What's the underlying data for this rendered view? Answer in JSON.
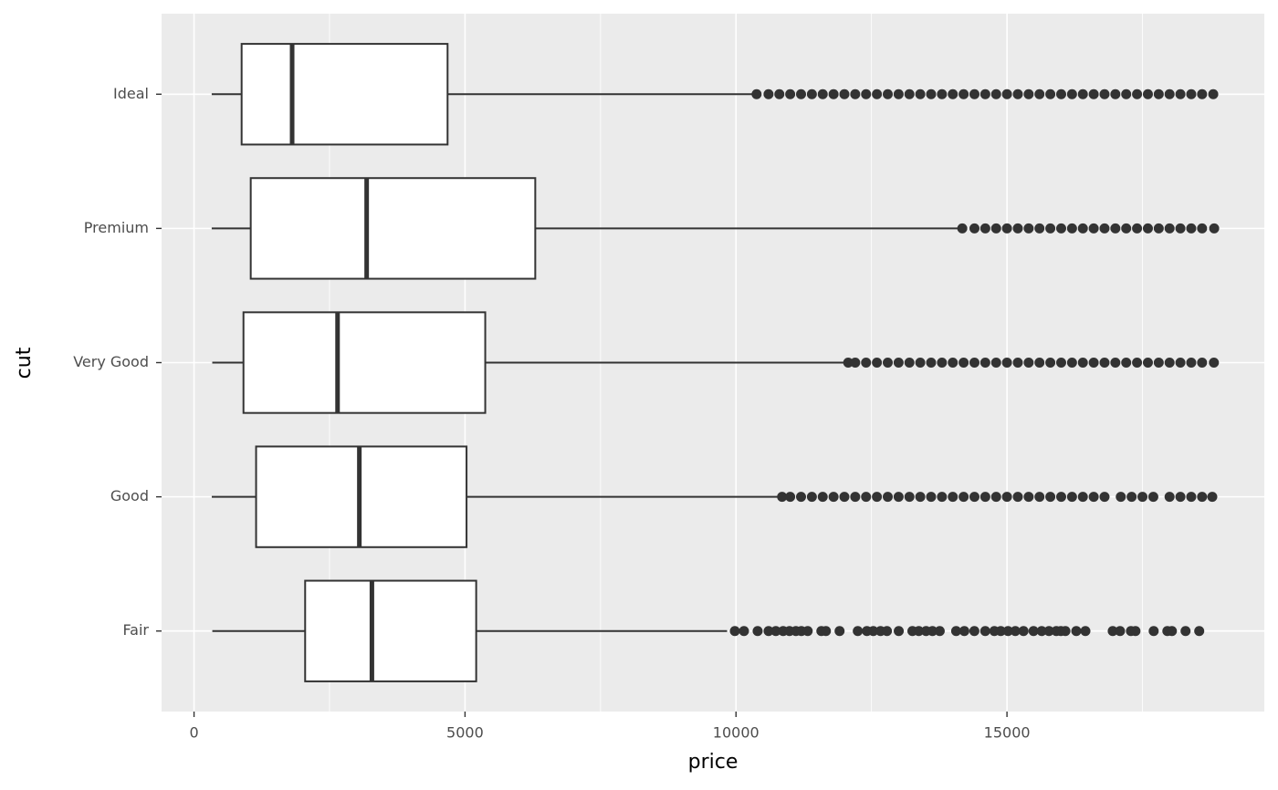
{
  "chart_data": {
    "type": "boxplot",
    "x_label": "price",
    "y_label": "cut",
    "categories": [
      "Ideal",
      "Premium",
      "Very Good",
      "Good",
      "Fair"
    ],
    "boxes": [
      {
        "min": 326,
        "q1": 878,
        "median": 1810,
        "q3": 4678,
        "max": 10380,
        "outliers": [
          10380,
          10600,
          10800,
          11000,
          11200,
          11400,
          11600,
          11800,
          12000,
          12200,
          12400,
          12600,
          12800,
          13000,
          13200,
          13400,
          13600,
          13800,
          14000,
          14200,
          14400,
          14600,
          14800,
          15000,
          15200,
          15400,
          15600,
          15800,
          16000,
          16200,
          16400,
          16600,
          16800,
          17000,
          17200,
          17400,
          17600,
          17800,
          18000,
          18200,
          18400,
          18600,
          18806
        ]
      },
      {
        "min": 326,
        "q1": 1046,
        "median": 3185,
        "q3": 6296,
        "max": 14175,
        "outliers": [
          14175,
          14400,
          14600,
          14800,
          15000,
          15200,
          15400,
          15600,
          15800,
          16000,
          16200,
          16400,
          16600,
          16800,
          17000,
          17200,
          17400,
          17600,
          17800,
          18000,
          18200,
          18400,
          18600,
          18823
        ]
      },
      {
        "min": 336,
        "q1": 912,
        "median": 2648,
        "q3": 5373,
        "max": 12070,
        "outliers": [
          12070,
          12200,
          12400,
          12600,
          12800,
          13000,
          13200,
          13400,
          13600,
          13800,
          14000,
          14200,
          14400,
          14600,
          14800,
          15000,
          15200,
          15400,
          15600,
          15800,
          16000,
          16200,
          16400,
          16600,
          16800,
          17000,
          17200,
          17400,
          17600,
          17800,
          18000,
          18200,
          18400,
          18600,
          18818
        ]
      },
      {
        "min": 327,
        "q1": 1145,
        "median": 3050,
        "q3": 5028,
        "max": 10850,
        "outliers": [
          10850,
          11000,
          11200,
          11400,
          11600,
          11800,
          12000,
          12200,
          12400,
          12600,
          12800,
          13000,
          13200,
          13400,
          13600,
          13800,
          14000,
          14200,
          14400,
          14600,
          14800,
          15000,
          15200,
          15400,
          15600,
          15800,
          16000,
          16200,
          16400,
          16600,
          16800,
          17100,
          17300,
          17500,
          17700,
          18000,
          18200,
          18400,
          18600,
          18788
        ]
      },
      {
        "min": 337,
        "q1": 2050,
        "median": 3282,
        "q3": 5206,
        "max": 9836,
        "outliers": [
          9979,
          10147,
          10399,
          10601,
          10735,
          10870,
          10987,
          11105,
          11206,
          11323,
          11575,
          11659,
          11911,
          12247,
          12415,
          12533,
          12667,
          12785,
          13003,
          13255,
          13373,
          13507,
          13625,
          13759,
          14062,
          14213,
          14398,
          14599,
          14767,
          14885,
          15019,
          15154,
          15305,
          15490,
          15641,
          15775,
          15910,
          15994,
          16078,
          16279,
          16447,
          16951,
          17086,
          17287,
          17371,
          17707,
          17959,
          18043,
          18295,
          18547
        ]
      }
    ],
    "box_fill": "#ffffff",
    "line_color": "#333333",
    "panel_color": "#ebebeb",
    "xlim": [
      -599,
      19748
    ],
    "xticks": [
      0,
      5000,
      10000,
      15000
    ],
    "grid": true
  }
}
